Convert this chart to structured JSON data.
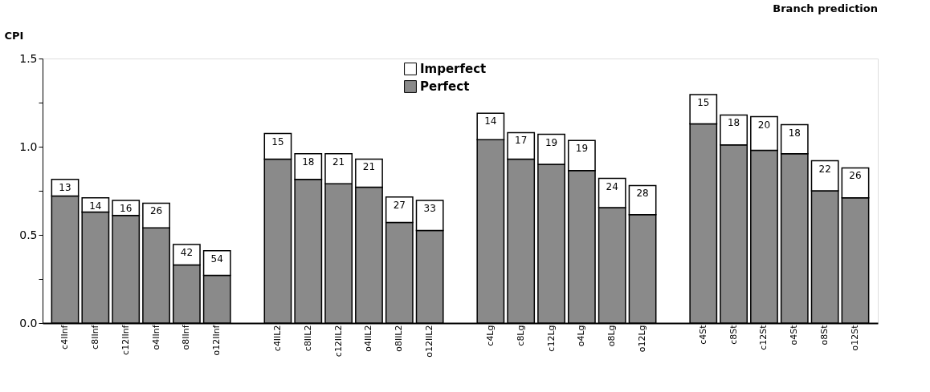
{
  "chart_data": {
    "type": "bar",
    "title": "Branch prediction",
    "ylabel": "CPI",
    "stacked": true,
    "legend": "top",
    "annotations": [
      {
        "text": "13",
        "x": "c4IInf",
        "y": 0.815
      },
      {
        "text": "14",
        "x": "c8IInf",
        "y": 0.71
      },
      {
        "text": "16",
        "x": "c12IInf",
        "y": 0.695
      },
      {
        "text": "26",
        "x": "o4IInf",
        "y": 0.68
      },
      {
        "text": "42",
        "x": "o8IInf",
        "y": 0.445
      },
      {
        "text": "54",
        "x": "o12IInf",
        "y": 0.41
      },
      {
        "text": "15",
        "x": "c4IIL2",
        "y": 1.075
      },
      {
        "text": "18",
        "x": "c8IIL2",
        "y": 0.96
      },
      {
        "text": "21",
        "x": "c12IIL2",
        "y": 0.96
      },
      {
        "text": "21",
        "x": "o4IIL2",
        "y": 0.93
      },
      {
        "text": "27",
        "x": "o8IIL2",
        "y": 0.715
      },
      {
        "text": "33",
        "x": "o12IIL2",
        "y": 0.695
      },
      {
        "text": "14",
        "x": "c4Lg",
        "y": 1.19
      },
      {
        "text": "17",
        "x": "c8Lg",
        "y": 1.08
      },
      {
        "text": "19",
        "x": "c12Lg",
        "y": 1.07
      },
      {
        "text": "19",
        "x": "o4Lg",
        "y": 1.035
      },
      {
        "text": "24",
        "x": "o8Lg",
        "y": 0.82
      },
      {
        "text": "28",
        "x": "o12Lg",
        "y": 0.78
      },
      {
        "text": "15",
        "x": "c4St",
        "y": 1.295
      },
      {
        "text": "18",
        "x": "c8St",
        "y": 1.18
      },
      {
        "text": "20",
        "x": "c12St",
        "y": 1.17
      },
      {
        "text": "18",
        "x": "o4St",
        "y": 1.125
      },
      {
        "text": "22",
        "x": "o8St",
        "y": 0.92
      },
      {
        "text": "26",
        "x": "o12St",
        "y": 0.88
      }
    ],
    "categories": [
      "c4IInf",
      "c8IInf",
      "c12IInf",
      "o4IInf",
      "o8IInf",
      "o12IInf",
      null,
      "c4IIL2",
      "c8IIL2",
      "c12IIL2",
      "o4IIL2",
      "o8IIL2",
      "o12IIL2",
      null,
      "c4Lg",
      "c8Lg",
      "c12Lg",
      "o4Lg",
      "o8Lg",
      "o12Lg",
      null,
      "c4St",
      "c8St",
      "c12St",
      "o4St",
      "o8St",
      "o12St"
    ],
    "series": [
      {
        "name": "Perfect",
        "color": "#8a8a8a",
        "values": [
          0.72,
          0.63,
          0.61,
          0.54,
          0.33,
          0.27,
          null,
          0.93,
          0.815,
          0.79,
          0.77,
          0.57,
          0.525,
          null,
          1.04,
          0.93,
          0.9,
          0.865,
          0.655,
          0.615,
          null,
          1.13,
          1.01,
          0.98,
          0.96,
          0.75,
          0.71
        ]
      },
      {
        "name": "Imperfect",
        "color": "#ffffff",
        "values": [
          0.095,
          0.08,
          0.085,
          0.14,
          0.115,
          0.14,
          null,
          0.145,
          0.145,
          0.17,
          0.16,
          0.145,
          0.17,
          null,
          0.15,
          0.15,
          0.17,
          0.17,
          0.165,
          0.165,
          null,
          0.165,
          0.17,
          0.19,
          0.165,
          0.17,
          0.17
        ]
      }
    ],
    "ylim": [
      0,
      1.5
    ],
    "yticks": [
      {
        "value": 0,
        "label": "0.0"
      },
      {
        "value": 0.25,
        "label": null
      },
      0.5,
      {
        "value": 0.75,
        "label": null
      },
      {
        "value": 1.0,
        "label": "1.0"
      },
      {
        "value": 1.25,
        "label": null
      },
      1.5
    ],
    "grid": false
  }
}
